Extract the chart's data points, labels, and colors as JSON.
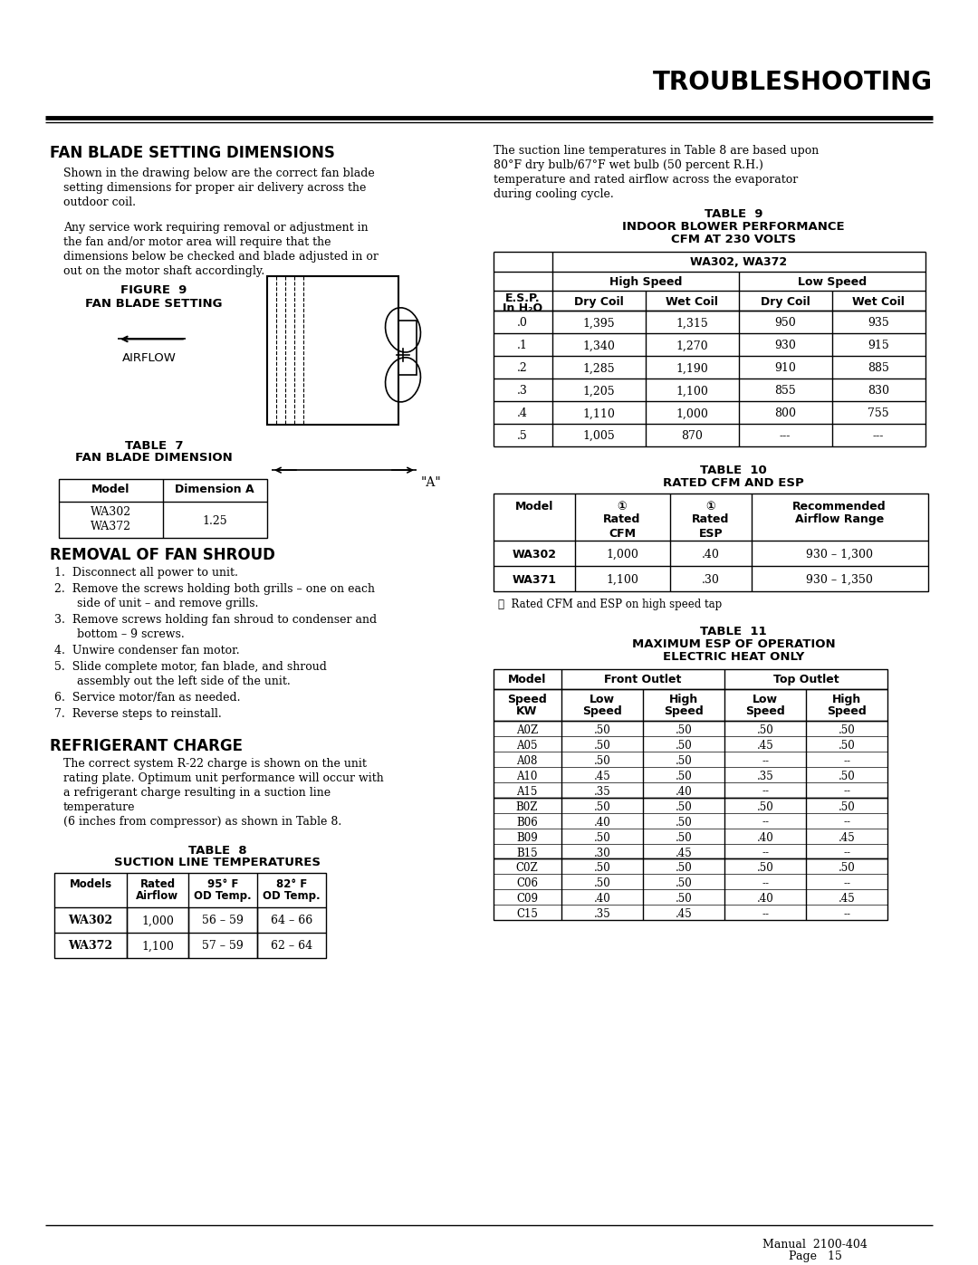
{
  "title": "TROUBLESHOOTING",
  "page_bg": "#ffffff",
  "section1_title": "FAN BLADE SETTING DIMENSIONS",
  "section1_para1": "Shown in the drawing below are the correct fan blade\nsetting dimensions for proper air delivery across the\noutdoor coil.",
  "section1_para2": "Any service work requiring removal or adjustment in\nthe fan and/or motor area will require that the\ndimensions below be checked and blade adjusted in or\nout on the motor shaft accordingly.",
  "figure_title_line1": "FIGURE  9",
  "figure_title_line2": "FAN BLADE SETTING",
  "airflow_label": "AIRFLOW",
  "table7_title_line1": "TABLE  7",
  "table7_title_line2": "FAN BLADE DIMENSION",
  "table7_headers": [
    "Model",
    "Dimension A"
  ],
  "dim_a_label": "\"A\"",
  "section2_title": "REMOVAL OF FAN SHROUD",
  "section2_steps": [
    "Disconnect all power to unit.",
    "Remove the screws holding both grills – one on each\n    side of unit – and remove grills.",
    "Remove screws holding fan shroud to condenser and\n    bottom – 9 screws.",
    "Unwire condenser fan motor.",
    "Slide complete motor, fan blade, and shroud\n    assembly out the left side of the unit.",
    "Service motor/fan as needed.",
    "Reverse steps to reinstall."
  ],
  "section3_title": "REFRIGERANT CHARGE",
  "section3_para": "The correct system R-22 charge is shown on the unit\nrating plate. Optimum unit performance will occur with\na refrigerant charge resulting in a suction line\ntemperature\n(6 inches from compressor) as shown in Table 8.",
  "table8_title_line1": "TABLE  8",
  "table8_title_line2": "SUCTION LINE TEMPERATURES",
  "table8_headers_line1": [
    "Models",
    "Rated",
    "95° F",
    "82° F"
  ],
  "table8_headers_line2": [
    "",
    "Airflow",
    "OD Temp.",
    "OD Temp."
  ],
  "table8_rows": [
    [
      "WA302",
      "1,000",
      "56 – 59",
      "64 – 66"
    ],
    [
      "WA372",
      "1,100",
      "57 – 59",
      "62 – 64"
    ]
  ],
  "right_para": "The suction line temperatures in Table 8 are based upon\n80°F dry bulb/67°F wet bulb (50 percent R.H.)\ntemperature and rated airflow across the evaporator\nduring cooling cycle.",
  "table9_title_line1": "TABLE  9",
  "table9_title_line2": "INDOOR BLOWER PERFORMANCE",
  "table9_title_line3": "CFM AT 230 VOLTS",
  "table9_col_header": "WA302, WA372",
  "table9_sub_headers": [
    "Dry Coil",
    "Wet Coil",
    "Dry Coil",
    "Wet Coil"
  ],
  "table9_esp_header_line1": "E.S.P.",
  "table9_esp_header_line2": "In H₂O",
  "table9_rows": [
    [
      ".0",
      "1,395",
      "1,315",
      "950",
      "935"
    ],
    [
      ".1",
      "1,340",
      "1,270",
      "930",
      "915"
    ],
    [
      ".2",
      "1,285",
      "1,190",
      "910",
      "885"
    ],
    [
      ".3",
      "1,205",
      "1,100",
      "855",
      "830"
    ],
    [
      ".4",
      "1,110",
      "1,000",
      "800",
      "755"
    ],
    [
      ".5",
      "1,005",
      "870",
      "---",
      "---"
    ]
  ],
  "table10_title_line1": "TABLE  10",
  "table10_title_line2": "RATED CFM AND ESP",
  "table10_rows": [
    [
      "WA302",
      "1,000",
      ".40",
      "930 – 1,300"
    ],
    [
      "WA371",
      "1,100",
      ".30",
      "930 – 1,350"
    ]
  ],
  "table10_footnote": "①  Rated CFM and ESP on high speed tap",
  "table11_title_line1": "TABLE  11",
  "table11_title_line2": "MAXIMUM ESP OF OPERATION",
  "table11_title_line3": "ELECTRIC HEAT ONLY",
  "table11_groups": [
    [
      [
        "A0Z",
        ".50",
        ".50",
        ".50",
        ".50"
      ],
      [
        "A05",
        ".50",
        ".50",
        ".45",
        ".50"
      ],
      [
        "A08",
        ".50",
        ".50",
        "--",
        "--"
      ],
      [
        "A10",
        ".45",
        ".50",
        ".35",
        ".50"
      ],
      [
        "A15",
        ".35",
        ".40",
        "--",
        "--"
      ]
    ],
    [
      [
        "B0Z",
        ".50",
        ".50",
        ".50",
        ".50"
      ],
      [
        "B06",
        ".40",
        ".50",
        "--",
        "--"
      ],
      [
        "B09",
        ".50",
        ".50",
        ".40",
        ".45"
      ],
      [
        "B15",
        ".30",
        ".45",
        "--",
        "--"
      ]
    ],
    [
      [
        "C0Z",
        ".50",
        ".50",
        ".50",
        ".50"
      ],
      [
        "C06",
        ".50",
        ".50",
        "--",
        "--"
      ],
      [
        "C09",
        ".40",
        ".50",
        ".40",
        ".45"
      ],
      [
        "C15",
        ".35",
        ".45",
        "--",
        "--"
      ]
    ]
  ],
  "footer_line1": "Manual  2100-404",
  "footer_line2": "Page   15"
}
